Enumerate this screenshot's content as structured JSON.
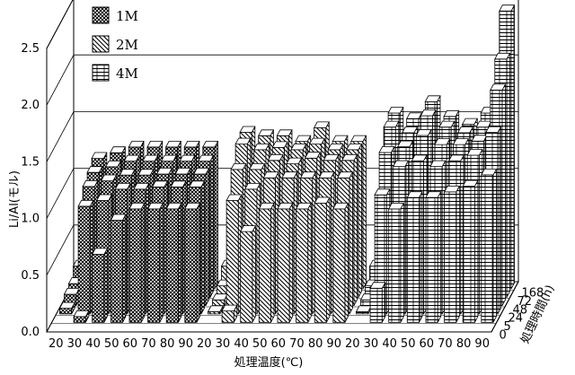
{
  "chart_data": {
    "type": "bar",
    "subtype": "3d-grouped-bar",
    "ylabel": "Li/Al(モル)",
    "xlabel": "処理温度(℃)",
    "zlabel": "処理時間(h)",
    "ylim": [
      0,
      2.5
    ],
    "yticks": [
      "0.0",
      "0.5",
      "1.0",
      "1.5",
      "2.0",
      "2.5"
    ],
    "categories": [
      "20",
      "30",
      "40",
      "50",
      "60",
      "70",
      "80",
      "90"
    ],
    "depth_categories": [
      "0",
      "5",
      "24",
      "48",
      "72",
      "168"
    ],
    "grid": true,
    "legend_position": "top-left",
    "series": [
      {
        "name": "1M",
        "pattern": "crosshatch",
        "values": [
          [
            0.0,
            0.0,
            0.05,
            0.1,
            0.12,
            0.2
          ],
          [
            0.0,
            0.05,
            0.95,
            1.05,
            1.1,
            1.15
          ],
          [
            0.0,
            0.6,
            1.0,
            1.1,
            1.15,
            1.2
          ],
          [
            0.0,
            0.9,
            1.1,
            1.15,
            1.2,
            1.25
          ],
          [
            0.0,
            1.0,
            1.1,
            1.15,
            1.2,
            1.25
          ],
          [
            0.0,
            1.0,
            1.12,
            1.16,
            1.2,
            1.25
          ],
          [
            0.0,
            1.0,
            1.12,
            1.16,
            1.2,
            1.25
          ],
          [
            0.0,
            1.0,
            1.12,
            1.16,
            1.2,
            1.25
          ]
        ]
      },
      {
        "name": "2M",
        "pattern": "diagonal",
        "values": [
          [
            0.0,
            0.0,
            0.02,
            0.05,
            0.1,
            0.2
          ],
          [
            0.0,
            0.1,
            1.0,
            1.2,
            1.35,
            1.38
          ],
          [
            0.0,
            0.8,
            1.1,
            1.2,
            1.3,
            1.35
          ],
          [
            0.0,
            1.0,
            1.2,
            1.28,
            1.32,
            1.35
          ],
          [
            0.0,
            1.0,
            1.2,
            1.25,
            1.3,
            1.3
          ],
          [
            0.0,
            1.0,
            1.2,
            1.3,
            1.35,
            1.42
          ],
          [
            0.0,
            1.05,
            1.2,
            1.28,
            1.3,
            1.3
          ],
          [
            0.0,
            1.0,
            1.2,
            1.28,
            1.3,
            1.3
          ]
        ]
      },
      {
        "name": "4M",
        "pattern": "horizontal",
        "values": [
          [
            0.0,
            0.0,
            0.02,
            0.05,
            0.1,
            0.2
          ],
          [
            0.0,
            0.3,
            1.05,
            1.35,
            1.5,
            1.55
          ],
          [
            0.0,
            1.0,
            1.3,
            1.4,
            1.45,
            1.5
          ],
          [
            0.0,
            1.1,
            1.35,
            1.5,
            1.6,
            1.65
          ],
          [
            0.0,
            1.1,
            1.3,
            1.42,
            1.5,
            1.52
          ],
          [
            0.0,
            1.15,
            1.35,
            1.42,
            1.45,
            1.45
          ],
          [
            0.0,
            1.2,
            1.4,
            1.45,
            1.5,
            1.55
          ],
          [
            0.0,
            1.3,
            1.6,
            1.9,
            2.1,
            2.45
          ]
        ]
      }
    ]
  }
}
